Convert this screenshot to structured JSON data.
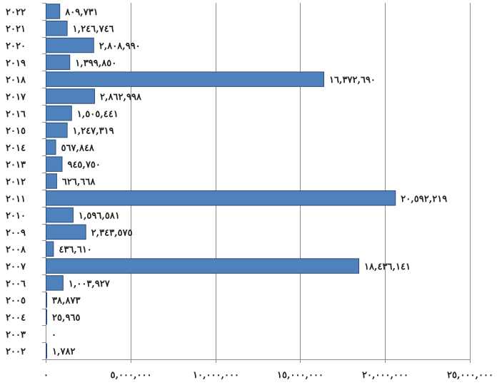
{
  "chart_data": {
    "type": "bar",
    "orientation": "horizontal",
    "categories": [
      "٢٠٢٢",
      "٢٠٢١",
      "٢٠٢٠",
      "٢٠١٩",
      "٢٠١٨",
      "٢٠١٧",
      "٢٠١٦",
      "٢٠١٥",
      "٢٠١٤",
      "٢٠١٣",
      "٢٠١٢",
      "٢٠١١",
      "٢٠١٠",
      "٢٠٠٩",
      "٢٠٠٨",
      "٢٠٠٧",
      "٢٠٠٦",
      "٢٠٠٥",
      "٢٠٠٤",
      "٢٠٠٣",
      "٢٠٠٢"
    ],
    "values": [
      809731,
      1246746,
      2808990,
      1399850,
      16372690,
      2862998,
      1505441,
      1247319,
      567848,
      945750,
      626668,
      20592219,
      1596581,
      2343575,
      436610,
      18436141,
      1003927,
      38873,
      25965,
      0,
      1782
    ],
    "value_labels": [
      "٨٠٩,٧٣١",
      "١,٢٤٦,٧٤٦",
      "٢,٨٠٨,٩٩٠",
      "١,٣٩٩,٨٥٠",
      "١٦,٣٧٢,٦٩٠",
      "٢,٨٦٢,٩٩٨",
      "١,٥٠٥,٤٤١",
      "١,٢٤٧,٣١٩",
      "٥٦٧,٨٤٨",
      "٩٤٥,٧٥٠",
      "٦٢٦,٦٦٨",
      "٢٠,٥٩٢,٢١٩",
      "١,٥٩٦,٥٨١",
      "٢,٣٤٣,٥٧٥",
      "٤٣٦,٦١٠",
      "١٨,٤٣٦,١٤١",
      "١,٠٠٣,٩٢٧",
      "٣٨,٨٧٣",
      "٢٥,٩٦٥",
      "٠",
      "١,٧٨٢"
    ],
    "x_ticks": [
      0,
      5000000,
      10000000,
      15000000,
      20000000,
      25000000
    ],
    "x_tick_labels": [
      "٠",
      "٥,٠٠٠,٠٠٠",
      "١٠,٠٠٠,٠٠٠",
      "١٥,٠٠٠,٠٠٠",
      "٢٠,٠٠٠,٠٠٠",
      "٢٥,٠٠٠,٠٠٠"
    ],
    "xlim": [
      0,
      25000000
    ],
    "grid": true,
    "colors": {
      "bar": "#4f81bd",
      "bar_edge": "#2c4d75",
      "grid": "#8c8c8c",
      "axis": "#8c8c8c"
    }
  }
}
